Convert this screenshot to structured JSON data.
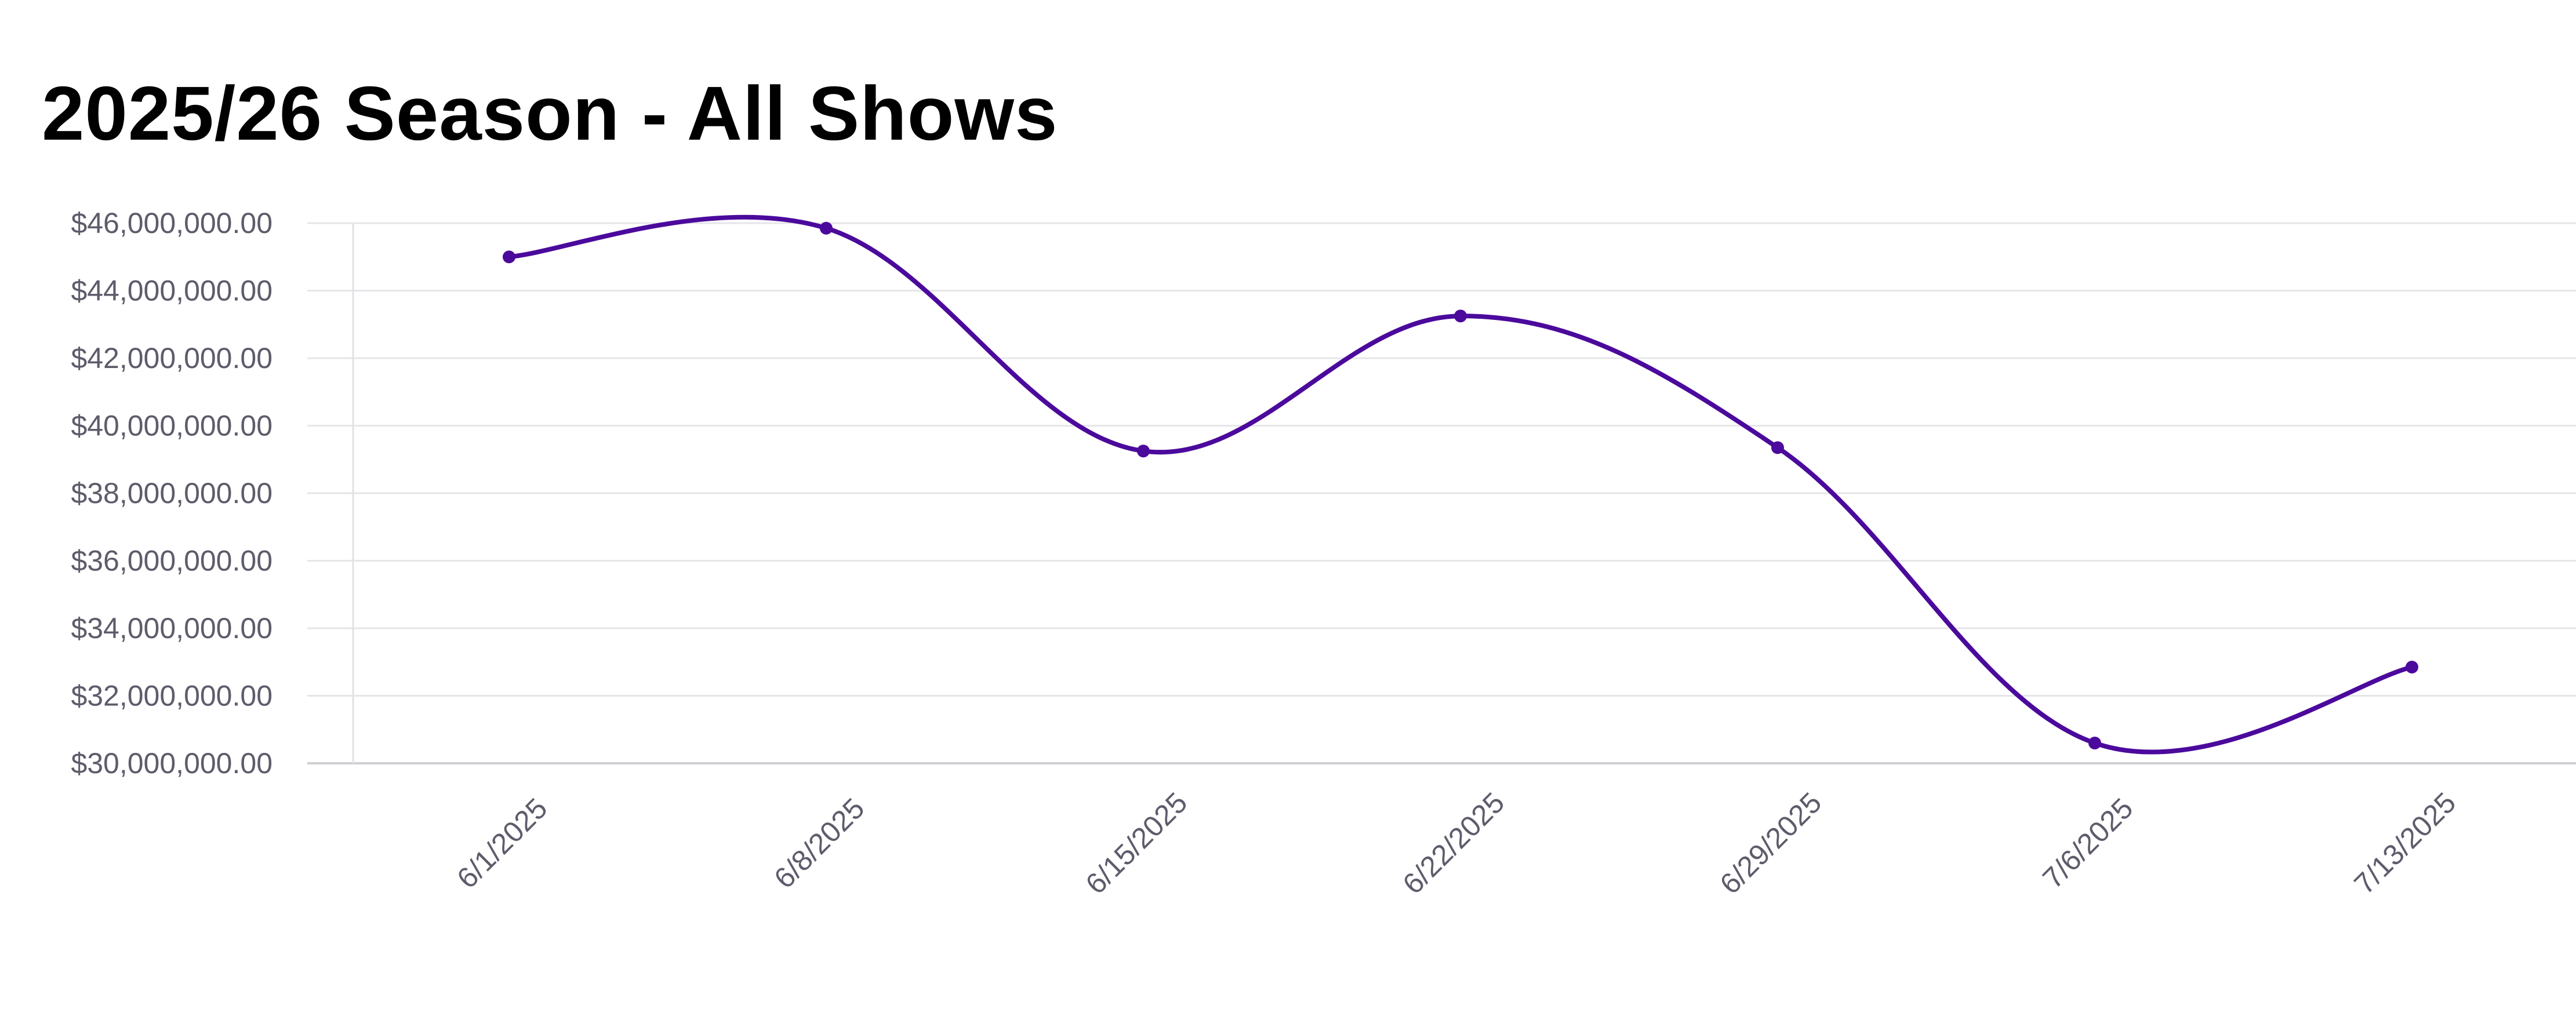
{
  "chart_data": {
    "type": "line",
    "title": "2025/26 Season - All Shows",
    "xlabel": "",
    "ylabel": "",
    "categories": [
      "6/1/2025",
      "6/8/2025",
      "6/15/2025",
      "6/22/2025",
      "6/29/2025",
      "7/6/2025",
      "7/13/2025"
    ],
    "series": [
      {
        "name": "All Shows",
        "values": [
          45000000,
          45850000,
          39250000,
          43250000,
          39350000,
          30600000,
          32850000
        ],
        "color": "#4b0a9c"
      }
    ],
    "ylim": [
      30000000,
      46000000
    ],
    "yticks": [
      30000000,
      32000000,
      34000000,
      36000000,
      38000000,
      40000000,
      42000000,
      44000000,
      46000000
    ],
    "ytick_labels": [
      "$30,000,000.00",
      "$32,000,000.00",
      "$34,000,000.00",
      "$36,000,000.00",
      "$38,000,000.00",
      "$40,000,000.00",
      "$42,000,000.00",
      "$44,000,000.00",
      "$46,000,000.00"
    ],
    "grid": true,
    "legend": "none"
  }
}
